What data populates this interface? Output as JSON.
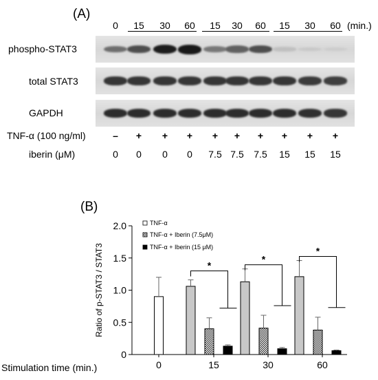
{
  "panel_a": {
    "label": "(A)",
    "time_ticks": [
      "0",
      "15",
      "30",
      "60",
      "15",
      "30",
      "60",
      "15",
      "30",
      "60"
    ],
    "time_unit": "(min.)",
    "blots": [
      {
        "label": "phospho-STAT3",
        "intensities": [
          0.55,
          0.72,
          0.98,
          1.0,
          0.5,
          0.62,
          0.72,
          0.12,
          0.08,
          0.06
        ]
      },
      {
        "label": "total STAT3",
        "intensities": [
          0.85,
          0.85,
          0.85,
          0.85,
          0.85,
          0.85,
          0.85,
          0.85,
          0.82,
          0.8
        ]
      },
      {
        "label": "GAPDH",
        "intensities": [
          0.9,
          0.9,
          0.9,
          0.9,
          0.9,
          0.9,
          0.9,
          0.9,
          0.88,
          0.85
        ]
      }
    ],
    "treatments": [
      {
        "label": "TNF-α (100 ng/ml)",
        "values": [
          "–",
          "+",
          "+",
          "+",
          "+",
          "+",
          "+",
          "+",
          "+",
          "+"
        ]
      },
      {
        "label": "iberin (μM)",
        "values": [
          "0",
          "0",
          "0",
          "0",
          "7.5",
          "7.5",
          "7.5",
          "15",
          "15",
          "15"
        ]
      }
    ]
  },
  "panel_b": {
    "label": "(B)",
    "xlabel": "Stimulation time (min.)",
    "significance_marker": "*"
  },
  "chart_data": {
    "type": "bar",
    "categories": [
      "0",
      "15",
      "30",
      "60"
    ],
    "series": [
      {
        "name": "TNF-α",
        "values": [
          0.9,
          1.06,
          1.13,
          1.21
        ],
        "errors": [
          0.3,
          0.1,
          0.2,
          0.25
        ],
        "fill": "white"
      },
      {
        "name": "TNF-α + Iberin (7.5μM)",
        "values": [
          null,
          0.4,
          0.41,
          0.38
        ],
        "errors": [
          null,
          0.17,
          0.2,
          0.2
        ],
        "fill": "hatched"
      },
      {
        "name": "TNF-α + Iberin (15 μM)",
        "values": [
          null,
          0.13,
          0.09,
          0.06
        ],
        "errors": [
          null,
          0.02,
          0.02,
          0.01
        ],
        "fill": "black"
      }
    ],
    "ylabel": "Ratio of p-STAT3 / STAT3",
    "ylim": [
      0,
      2.0
    ],
    "yticks": [
      "0",
      "0.5",
      "1.0",
      "1.5",
      "2.0"
    ],
    "grid": false,
    "legend": "top-left",
    "colors": {
      "gray_bar": "#c8c8c8",
      "black": "#000000",
      "white": "#ffffff"
    }
  }
}
